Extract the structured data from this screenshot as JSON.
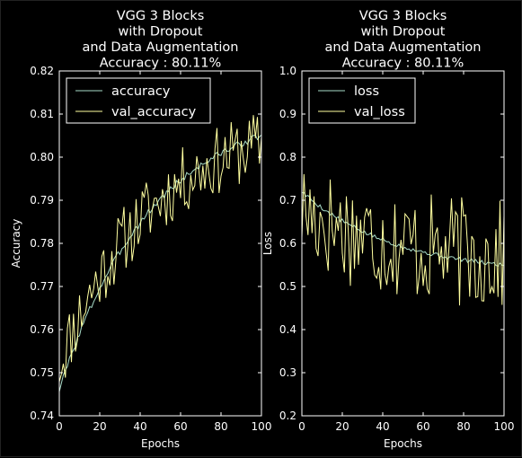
{
  "chart_data": [
    {
      "type": "line",
      "title": [
        "VGG 3 Blocks",
        "with Dropout",
        "and Data Augmentation",
        "Accuracy : 80.11%"
      ],
      "xlabel": "Epochs",
      "ylabel": "Accuracy",
      "xlim": [
        0,
        100
      ],
      "ylim": [
        0.74,
        0.82
      ],
      "xticks": [
        "0",
        "20",
        "40",
        "60",
        "80",
        "100"
      ],
      "yticks": [
        "0.74",
        "0.75",
        "0.76",
        "0.77",
        "0.78",
        "0.79",
        "0.80",
        "0.81",
        "0.82"
      ],
      "legend_position": "upper-left",
      "grid": false,
      "series": [
        {
          "name": "accuracy",
          "color": "#a8dcc8",
          "start": 0.746,
          "end": 0.805,
          "noise": 0.0008,
          "seed": 3
        },
        {
          "name": "val_accuracy",
          "color": "#ffffa0",
          "start": 0.752,
          "end": 0.803,
          "noise": 0.008,
          "seed": 11
        }
      ]
    },
    {
      "type": "line",
      "title": [
        "VGG 3 Blocks",
        "with Dropout",
        "and Data Augmentation",
        "Accuracy : 80.11%"
      ],
      "xlabel": "Epochs",
      "ylabel": "Loss",
      "xlim": [
        0,
        100
      ],
      "ylim": [
        0.2,
        1.0
      ],
      "xticks": [
        "0",
        "20",
        "40",
        "60",
        "80",
        "100"
      ],
      "yticks": [
        "0.2",
        "0.3",
        "0.4",
        "0.5",
        "0.6",
        "0.7",
        "0.8",
        "0.9",
        "1.0"
      ],
      "legend_position": "upper-left",
      "grid": false,
      "series": [
        {
          "name": "loss",
          "color": "#a8dcc8",
          "start": 0.72,
          "end": 0.55,
          "noise": 0.005,
          "seed": 5
        },
        {
          "name": "val_loss",
          "color": "#ffffa0",
          "start": 0.68,
          "end": 0.57,
          "noise": 0.13,
          "seed": 17
        }
      ]
    }
  ]
}
